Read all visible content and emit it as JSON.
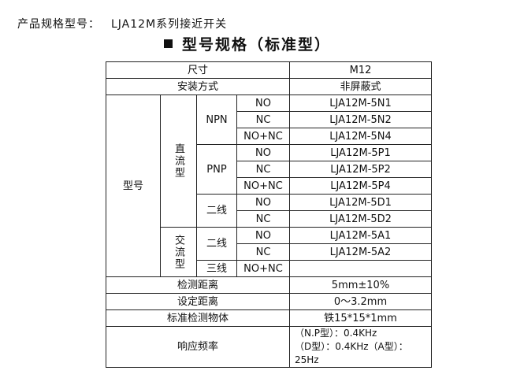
{
  "header": {
    "label": "产品规格型号：",
    "model": "LJA12M系列接近开关"
  },
  "title": "型号规格（标准型）",
  "table": {
    "size_label": "尺寸",
    "size_value": "M12",
    "mount_label": "安装方式",
    "mount_value": "非屏蔽式",
    "model_label": "型号",
    "dc_label": "直流型",
    "ac_label": "交流型",
    "npn": "NPN",
    "pnp": "PNP",
    "two_wire": "二线",
    "three_wire": "三线",
    "rows": [
      {
        "contact": "NO",
        "model": "LJA12M-5N1"
      },
      {
        "contact": "NC",
        "model": "LJA12M-5N2"
      },
      {
        "contact": "NO+NC",
        "model": "LJA12M-5N4"
      },
      {
        "contact": "NO",
        "model": "LJA12M-5P1"
      },
      {
        "contact": "NC",
        "model": "LJA12M-5P2"
      },
      {
        "contact": "NO+NC",
        "model": "LJA12M-5P4"
      },
      {
        "contact": "NO",
        "model": "LJA12M-5D1"
      },
      {
        "contact": "NC",
        "model": "LJA12M-5D2"
      },
      {
        "contact": "NO",
        "model": "LJA12M-5A1"
      },
      {
        "contact": "NC",
        "model": "LJA12M-5A2"
      },
      {
        "contact": "NO+NC",
        "model": ""
      }
    ],
    "specs": [
      {
        "label": "检测距离",
        "value": "5mm±10%"
      },
      {
        "label": "设定距离",
        "value": "0～3.2mm"
      },
      {
        "label": "标准检测物体",
        "value": "铁15*15*1mm"
      }
    ],
    "resp_label": "响应频率",
    "resp_line1": "（N.P型）：0.4KHz",
    "resp_line2": "（D型）：0.4KHz（A型）：25Hz"
  }
}
